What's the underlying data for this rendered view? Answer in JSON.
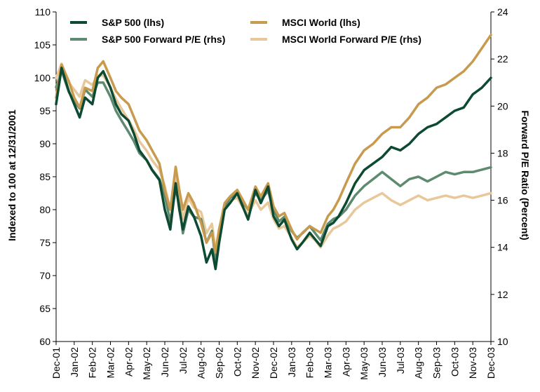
{
  "chart_data": {
    "type": "line",
    "title": "",
    "xlabel": "",
    "ylabel": "Indexed to 100 at 12/31/2001",
    "y2label": "Forward P/E Ratio (Percent)",
    "ylim": [
      60,
      110
    ],
    "y2lim": [
      10,
      24
    ],
    "y_ticks": [
      "60",
      "65",
      "70",
      "75",
      "80",
      "85",
      "90",
      "95",
      "100",
      "105",
      "110"
    ],
    "y2_ticks": [
      "10",
      "12",
      "14",
      "16",
      "18",
      "20",
      "22",
      "24"
    ],
    "x_ticks": [
      "Dec-01",
      "Jan-02",
      "Feb-02",
      "Mar-02",
      "Apr-02",
      "May-02",
      "Jun-02",
      "Jul-02",
      "Aug-02",
      "Sep-02",
      "Oct-02",
      "Nov-02",
      "Dec-02",
      "Jan-03",
      "Feb-03",
      "Mar-03",
      "Apr-03",
      "May-03",
      "Jun-03",
      "Jul-03",
      "Aug-03",
      "Sep-03",
      "Oct-03",
      "Nov-03",
      "Dec-03"
    ],
    "grid": false,
    "legend_position": "top",
    "series": [
      {
        "name": "S&P 500 (lhs)",
        "axis": "left",
        "color": "#0d4a32",
        "x": [
          0,
          0.3,
          0.7,
          1.0,
          1.3,
          1.6,
          2.0,
          2.3,
          2.6,
          3.0,
          3.3,
          3.6,
          4.0,
          4.3,
          4.6,
          5.0,
          5.3,
          5.7,
          6.0,
          6.3,
          6.6,
          6.8,
          7.0,
          7.3,
          7.6,
          8.0,
          8.3,
          8.6,
          8.8,
          9.0,
          9.3,
          9.6,
          10.0,
          10.3,
          10.6,
          11.0,
          11.3,
          11.7,
          12.0,
          12.3,
          12.6,
          13.0,
          13.3,
          13.6,
          14.0,
          14.3,
          14.6,
          15.0,
          15.3,
          15.6,
          16.0,
          16.5,
          17.0,
          17.5,
          18.0,
          18.5,
          19.0,
          19.5,
          20.0,
          20.5,
          21.0,
          21.5,
          22.0,
          22.5,
          23.0,
          23.5,
          24.0
        ],
        "y": [
          96,
          101.5,
          98,
          96,
          94,
          97,
          96,
          100,
          101,
          98.5,
          96,
          94.5,
          93.5,
          91.5,
          89,
          87.5,
          86,
          84.5,
          80,
          77,
          84,
          80,
          77,
          80.5,
          79,
          76,
          72,
          74,
          71,
          75,
          80,
          81,
          82.5,
          80.5,
          78.5,
          83,
          81,
          83.5,
          79,
          77.5,
          78.5,
          75.5,
          74,
          75,
          76.5,
          75.5,
          74.5,
          77.5,
          78,
          79,
          81,
          84,
          86,
          87,
          88,
          89.5,
          89,
          90,
          91.5,
          92.5,
          93,
          94,
          95,
          95.5,
          97.5,
          98.5,
          100
        ]
      },
      {
        "name": "MSCI World (lhs)",
        "axis": "left",
        "color": "#c89a4d",
        "x": [
          0,
          0.3,
          0.7,
          1.0,
          1.3,
          1.6,
          2.0,
          2.3,
          2.6,
          3.0,
          3.3,
          3.6,
          4.0,
          4.3,
          4.6,
          5.0,
          5.3,
          5.7,
          6.0,
          6.3,
          6.6,
          6.8,
          7.0,
          7.3,
          7.6,
          8.0,
          8.3,
          8.6,
          8.8,
          9.0,
          9.3,
          9.6,
          10.0,
          10.3,
          10.6,
          11.0,
          11.3,
          11.7,
          12.0,
          12.3,
          12.6,
          13.0,
          13.3,
          13.6,
          14.0,
          14.3,
          14.6,
          15.0,
          15.3,
          15.6,
          16.0,
          16.5,
          17.0,
          17.5,
          18.0,
          18.5,
          19.0,
          19.5,
          20.0,
          20.5,
          21.0,
          21.5,
          22.0,
          22.5,
          23.0,
          23.5,
          24.0
        ],
        "y": [
          97,
          102,
          99.5,
          97,
          95.5,
          98.5,
          98,
          101.5,
          102.5,
          100,
          98,
          97,
          96,
          94,
          92,
          90.5,
          89,
          87,
          83,
          80,
          86.5,
          83,
          80,
          82.5,
          81,
          78,
          75,
          76.5,
          73.5,
          77,
          81,
          82,
          83,
          81.5,
          80,
          83.5,
          82,
          84,
          80.5,
          79,
          79.5,
          77,
          75.5,
          76.5,
          77.5,
          77,
          76.5,
          79,
          80,
          81.5,
          84,
          87,
          89,
          90,
          91.5,
          92.5,
          92.5,
          94,
          96,
          97,
          98.5,
          99,
          100,
          101,
          102.5,
          104.5,
          106.5
        ]
      },
      {
        "name": "S&P 500 Forward P/E (rhs)",
        "axis": "right",
        "color": "#5e8a70",
        "x": [
          0,
          0.3,
          0.7,
          1.0,
          1.3,
          1.6,
          2.0,
          2.3,
          2.6,
          3.0,
          3.3,
          3.6,
          4.0,
          4.3,
          4.6,
          5.0,
          5.3,
          5.7,
          6.0,
          6.3,
          6.6,
          6.8,
          7.0,
          7.3,
          7.6,
          8.0,
          8.3,
          8.6,
          8.8,
          9.0,
          9.3,
          9.6,
          10.0,
          10.3,
          10.6,
          11.0,
          11.3,
          11.7,
          12.0,
          12.3,
          12.6,
          13.0,
          13.3,
          13.6,
          14.0,
          14.3,
          14.6,
          15.0,
          15.3,
          15.6,
          16.0,
          16.5,
          17.0,
          17.5,
          18.0,
          18.5,
          19.0,
          19.5,
          20.0,
          20.5,
          21.0,
          21.5,
          22.0,
          22.5,
          23.0,
          23.5,
          24.0
        ],
        "y": [
          20.8,
          21.5,
          20.6,
          20.2,
          19.9,
          20.7,
          20.4,
          21.0,
          21.0,
          20.4,
          19.8,
          19.4,
          18.9,
          18.5,
          18.0,
          17.7,
          17.3,
          16.9,
          16.2,
          15.1,
          16.5,
          15.8,
          14.6,
          15.6,
          15.3,
          15.2,
          14.2,
          14.7,
          13.5,
          14.6,
          15.7,
          16.1,
          16.3,
          15.9,
          15.6,
          16.3,
          16.0,
          16.4,
          15.6,
          15.1,
          15.3,
          14.7,
          14.4,
          14.6,
          14.9,
          14.6,
          14.3,
          15.0,
          15.2,
          15.3,
          15.6,
          16.2,
          16.6,
          16.9,
          17.2,
          16.9,
          16.6,
          16.9,
          17.0,
          16.8,
          17.0,
          17.2,
          17.1,
          17.2,
          17.2,
          17.3,
          17.4
        ]
      },
      {
        "name": "MSCI World Forward P/E (rhs)",
        "axis": "right",
        "color": "#e8c89a",
        "x": [
          0,
          0.3,
          0.7,
          1.0,
          1.3,
          1.6,
          2.0,
          2.3,
          2.6,
          3.0,
          3.3,
          3.6,
          4.0,
          4.3,
          4.6,
          5.0,
          5.3,
          5.7,
          6.0,
          6.3,
          6.6,
          6.8,
          7.0,
          7.3,
          7.6,
          8.0,
          8.3,
          8.6,
          8.8,
          9.0,
          9.3,
          9.6,
          10.0,
          10.3,
          10.6,
          11.0,
          11.3,
          11.7,
          12.0,
          12.3,
          12.6,
          13.0,
          13.3,
          13.6,
          14.0,
          14.3,
          14.6,
          15.0,
          15.3,
          15.6,
          16.0,
          16.5,
          17.0,
          17.5,
          18.0,
          18.5,
          19.0,
          19.5,
          20.0,
          20.5,
          21.0,
          21.5,
          22.0,
          22.5,
          23.0,
          23.5,
          24.0
        ],
        "y": [
          21.2,
          21.8,
          21.0,
          20.7,
          20.4,
          21.1,
          20.9,
          21.3,
          21.3,
          20.8,
          20.3,
          19.9,
          19.4,
          19.0,
          18.5,
          18.1,
          17.7,
          17.3,
          16.6,
          15.6,
          17.0,
          16.2,
          15.2,
          16.1,
          15.7,
          15.5,
          14.6,
          15.0,
          13.9,
          14.8,
          15.8,
          16.0,
          16.1,
          15.7,
          15.4,
          16.0,
          15.6,
          15.9,
          15.2,
          14.8,
          14.9,
          14.4,
          14.0,
          14.2,
          14.5,
          14.3,
          14.0,
          14.5,
          14.8,
          14.9,
          15.1,
          15.6,
          15.9,
          16.1,
          16.3,
          16.0,
          15.8,
          16.0,
          16.2,
          16.0,
          16.1,
          16.2,
          16.1,
          16.2,
          16.1,
          16.2,
          16.3
        ]
      }
    ]
  }
}
